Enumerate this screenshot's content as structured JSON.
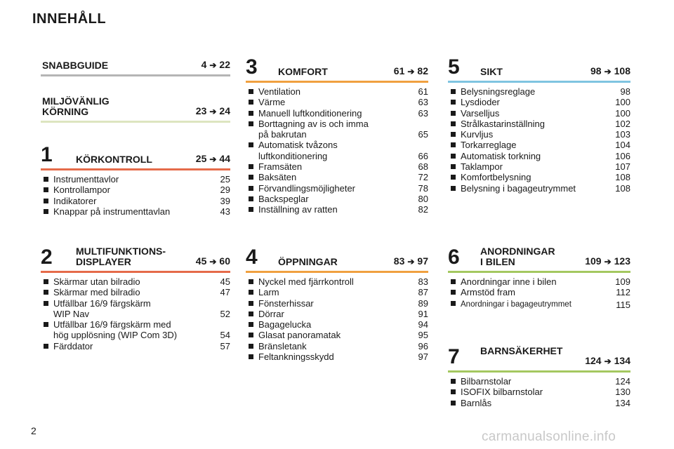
{
  "page_title": "INNEHÅLL",
  "page_number": "2",
  "watermark": "carmanualsonline.info",
  "arrow_glyph": "➔",
  "sections": {
    "snabbguide": {
      "title": "SNABBGUIDE",
      "from": "4",
      "to": "22",
      "line_color": "#b5b5b5"
    },
    "miljo": {
      "title": "MILJÖVÄNLIG\nKÖRNING",
      "from": "23",
      "to": "24",
      "line_color": "#dde5c0"
    },
    "s1": {
      "num": "1",
      "title": "KÖRKONTROLL",
      "from": "25",
      "to": "44",
      "line_color": "#e56b4a",
      "items": [
        {
          "text": "Instrumenttavlor",
          "page": "25"
        },
        {
          "text": "Kontrollampor",
          "page": "29"
        },
        {
          "text": "Indikatorer",
          "page": "39"
        },
        {
          "text": "Knappar på instrumenttavlan",
          "page": "43"
        }
      ]
    },
    "s2": {
      "num": "2",
      "title": "MULTIFUNKTIONS-\nDISPLAYER",
      "from": "45",
      "to": "60",
      "line_color": "#e56b4a",
      "items": [
        {
          "text": "Skärmar utan bilradio",
          "page": "45"
        },
        {
          "text": "Skärmar med bilradio",
          "page": "47"
        },
        {
          "text": "Utfällbar 16/9 färgskärm\n WIP Nav",
          "page": "52"
        },
        {
          "text": "Utfällbar 16/9 färgskärm med\nhög upplösning (WIP Com 3D)",
          "page": "54"
        },
        {
          "text": "Färddator",
          "page": "57"
        }
      ]
    },
    "s3": {
      "num": "3",
      "title": "KOMFORT",
      "from": "61",
      "to": "82",
      "line_color": "#f0a040",
      "items": [
        {
          "text": "Ventilation",
          "page": "61"
        },
        {
          "text": "Värme",
          "page": "63"
        },
        {
          "text": "Manuell luftkonditionering",
          "page": "63"
        },
        {
          "text": "Borttagning av is och imma\npå bakrutan",
          "page": "65"
        },
        {
          "text": "Automatisk tvåzons\nluftkonditionering",
          "page": "66"
        },
        {
          "text": "Framsäten",
          "page": "68"
        },
        {
          "text": "Baksäten",
          "page": "72"
        },
        {
          "text": "Förvandlingsmöjligheter",
          "page": "78"
        },
        {
          "text": "Backspeglar",
          "page": "80"
        },
        {
          "text": "Inställning av ratten",
          "page": "82"
        }
      ]
    },
    "s4": {
      "num": "4",
      "title": "ÖPPNINGAR",
      "from": "83",
      "to": "97",
      "line_color": "#f0a040",
      "items": [
        {
          "text": "Nyckel med fjärrkontroll",
          "page": "83"
        },
        {
          "text": "Larm",
          "page": "87"
        },
        {
          "text": "Fönsterhissar",
          "page": "89"
        },
        {
          "text": "Dörrar",
          "page": "91"
        },
        {
          "text": "Bagagelucka",
          "page": "94"
        },
        {
          "text": "Glasat panoramatak",
          "page": "95"
        },
        {
          "text": "Bränsletank",
          "page": "96"
        },
        {
          "text": "Feltankningsskydd",
          "page": "97"
        }
      ]
    },
    "s5": {
      "num": "5",
      "title": "SIKT",
      "from": "98",
      "to": "108",
      "line_color": "#7fc4e0",
      "items": [
        {
          "text": "Belysningsreglage",
          "page": "98"
        },
        {
          "text": "Lysdioder",
          "page": "100"
        },
        {
          "text": "Varselljus",
          "page": "100"
        },
        {
          "text": "Strålkastarinställning",
          "page": "102"
        },
        {
          "text": "Kurvljus",
          "page": "103"
        },
        {
          "text": "Torkarreglage",
          "page": "104"
        },
        {
          "text": "Automatisk torkning",
          "page": "106"
        },
        {
          "text": "Taklampor",
          "page": "107"
        },
        {
          "text": "Komfortbelysning",
          "page": "108"
        },
        {
          "text": "Belysning i bagageutrymmet",
          "page": "108"
        }
      ]
    },
    "s6": {
      "num": "6",
      "title": "ANORDNINGAR\nI BILEN",
      "from": "109",
      "to": "123",
      "line_color": "#a4c860",
      "items": [
        {
          "text": "Anordningar inne i bilen",
          "page": "109"
        },
        {
          "text": "Armstöd fram",
          "page": "112"
        },
        {
          "text": "Anordningar i bagageutrymmet",
          "page": "115"
        }
      ]
    },
    "s7": {
      "num": "7",
      "title": "BARNSÄKERHET",
      "from": "124",
      "to": "134",
      "line_color": "#a4c860",
      "items": [
        {
          "text": "Bilbarnstolar",
          "page": "124"
        },
        {
          "text": "ISOFIX bilbarnstolar",
          "page": "130"
        },
        {
          "text": "Barnlås",
          "page": "134"
        }
      ]
    }
  }
}
